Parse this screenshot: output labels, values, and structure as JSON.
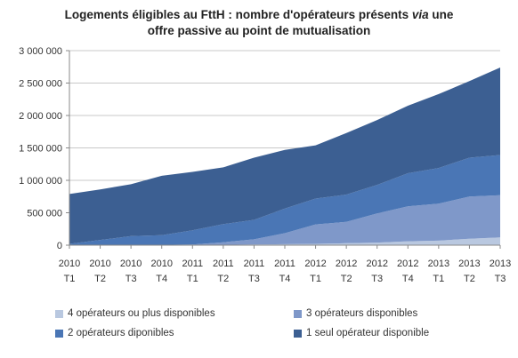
{
  "title": {
    "line1": "Logements éligibles au FttH : nombre d'opérateurs présents ",
    "line1_italic": "via",
    "line1_end": " une",
    "line2": "offre passive au point de mutualisation"
  },
  "chart_data": {
    "type": "area",
    "stacked": true,
    "categories": [
      [
        "2010",
        "T1"
      ],
      [
        "2010",
        "T2"
      ],
      [
        "2010",
        "T3"
      ],
      [
        "2010",
        "T4"
      ],
      [
        "2011",
        "T1"
      ],
      [
        "2011",
        "T2"
      ],
      [
        "2011",
        "T3"
      ],
      [
        "2011",
        "T4"
      ],
      [
        "2012",
        "T1"
      ],
      [
        "2012",
        "T2"
      ],
      [
        "2012",
        "T3"
      ],
      [
        "2012",
        "T4"
      ],
      [
        "2013",
        "T1"
      ],
      [
        "2013",
        "T2"
      ],
      [
        "2013",
        "T3"
      ]
    ],
    "ylim": [
      0,
      3000000
    ],
    "yticks": [
      {
        "value": 0,
        "label": "0"
      },
      {
        "value": 500000,
        "label": "500 000"
      },
      {
        "value": 1000000,
        "label": "1 000 000"
      },
      {
        "value": 1500000,
        "label": "1 500 000"
      },
      {
        "value": 2000000,
        "label": "2 000 000"
      },
      {
        "value": 2500000,
        "label": "2 500 000"
      },
      {
        "value": 3000000,
        "label": "3 000 000"
      }
    ],
    "grid": true,
    "legend_position": "bottom",
    "series": [
      {
        "name": "4 opérateurs ou plus disponibles",
        "color": "#b9c8e0",
        "values": [
          0,
          0,
          0,
          0,
          0,
          5000,
          10000,
          15000,
          20000,
          30000,
          40000,
          60000,
          70000,
          100000,
          120000
        ]
      },
      {
        "name": "3 opérateurs disponibles",
        "color": "#7f98c9",
        "values": [
          0,
          0,
          0,
          5000,
          10000,
          40000,
          80000,
          170000,
          300000,
          330000,
          450000,
          540000,
          570000,
          650000,
          650000
        ]
      },
      {
        "name": "2 opérateurs diponibles",
        "color": "#4a76b5",
        "values": [
          20000,
          80000,
          140000,
          150000,
          220000,
          280000,
          300000,
          380000,
          400000,
          420000,
          440000,
          510000,
          550000,
          600000,
          620000
        ]
      },
      {
        "name": "1 seul opérateur disponible",
        "color": "#3c5f92",
        "values": [
          770000,
          780000,
          800000,
          915000,
          900000,
          875000,
          960000,
          905000,
          820000,
          950000,
          1000000,
          1040000,
          1140000,
          1180000,
          1350000
        ]
      }
    ]
  },
  "legend_layout": [
    0,
    1,
    2,
    3
  ]
}
